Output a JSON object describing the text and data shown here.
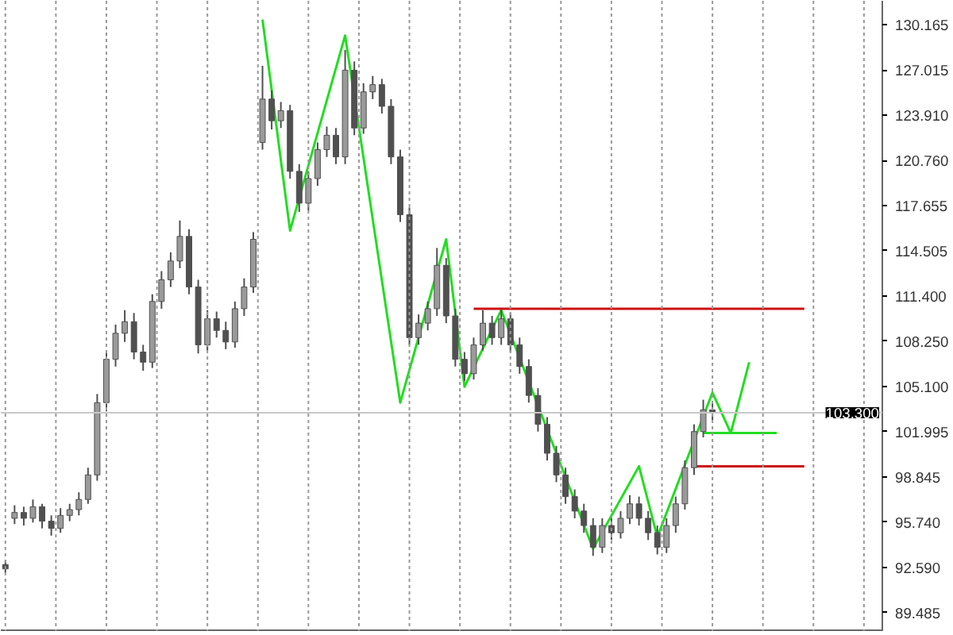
{
  "chart_data": {
    "type": "candlestick",
    "categories": [
      null,
      null,
      null,
      null,
      null,
      null,
      null,
      null,
      null,
      null,
      null,
      null,
      null,
      null,
      null,
      null,
      null,
      null,
      null,
      null,
      null,
      null,
      null,
      null,
      null,
      null,
      null,
      null,
      null,
      null,
      null,
      null,
      null,
      null,
      null,
      null,
      null,
      null,
      null,
      null,
      null,
      null,
      null,
      null,
      null,
      null,
      null,
      null,
      null,
      null,
      null,
      null,
      null,
      null,
      null,
      null,
      null,
      null,
      null,
      null,
      null,
      null,
      null,
      null,
      null,
      null,
      null,
      null,
      null,
      null,
      null,
      null,
      null,
      null,
      null,
      null,
      null,
      null,
      null,
      null,
      null,
      null,
      null,
      null,
      null,
      null,
      null,
      null,
      null,
      null,
      null,
      null,
      null,
      null,
      null,
      null
    ],
    "ohlc": [
      [
        92.8,
        93.1,
        92.2,
        92.5
      ],
      [
        96.0,
        96.9,
        95.6,
        96.4
      ],
      [
        96.4,
        96.8,
        95.5,
        96.0
      ],
      [
        96.0,
        97.3,
        95.7,
        96.8
      ],
      [
        96.8,
        97.0,
        95.3,
        95.8
      ],
      [
        95.8,
        96.2,
        94.8,
        95.3
      ],
      [
        95.3,
        96.7,
        95.0,
        96.2
      ],
      [
        96.2,
        97.0,
        95.8,
        96.6
      ],
      [
        96.6,
        97.8,
        96.2,
        97.3
      ],
      [
        97.3,
        99.5,
        97.0,
        99.0
      ],
      [
        99.0,
        104.6,
        98.6,
        104.0
      ],
      [
        104.0,
        107.6,
        103.4,
        107.0
      ],
      [
        107.0,
        109.4,
        106.5,
        108.8
      ],
      [
        108.8,
        110.4,
        108.2,
        109.6
      ],
      [
        109.6,
        110.2,
        107.0,
        107.5
      ],
      [
        107.5,
        108.0,
        106.2,
        106.8
      ],
      [
        106.8,
        111.5,
        106.4,
        111.0
      ],
      [
        111.0,
        113.1,
        110.5,
        112.5
      ],
      [
        112.5,
        114.4,
        112.0,
        113.8
      ],
      [
        113.8,
        116.6,
        113.3,
        115.5
      ],
      [
        115.5,
        116.0,
        111.5,
        112.0
      ],
      [
        112.0,
        112.5,
        107.4,
        108.0
      ],
      [
        108.0,
        110.4,
        107.6,
        109.8
      ],
      [
        109.8,
        110.3,
        108.5,
        109.0
      ],
      [
        109.0,
        109.6,
        107.7,
        108.2
      ],
      [
        108.2,
        111.0,
        107.8,
        110.5
      ],
      [
        110.5,
        112.6,
        110.0,
        112.0
      ],
      [
        112.0,
        115.8,
        111.6,
        115.3
      ],
      [
        122.0,
        127.3,
        121.5,
        125.0
      ],
      [
        125.0,
        125.6,
        122.9,
        123.5
      ],
      [
        123.5,
        124.8,
        123.0,
        124.2
      ],
      [
        124.2,
        124.6,
        119.5,
        120.0
      ],
      [
        120.0,
        120.5,
        117.2,
        117.8
      ],
      [
        117.8,
        120.0,
        117.3,
        119.5
      ],
      [
        119.5,
        122.0,
        119.0,
        121.5
      ],
      [
        121.5,
        123.1,
        121.0,
        122.5
      ],
      [
        122.5,
        123.0,
        120.5,
        121.0
      ],
      [
        121.0,
        128.4,
        120.5,
        127.0
      ],
      [
        127.0,
        127.6,
        122.5,
        123.0
      ],
      [
        123.0,
        126.1,
        122.6,
        125.5
      ],
      [
        125.5,
        126.6,
        125.0,
        126.0
      ],
      [
        126.0,
        126.4,
        124.0,
        124.5
      ],
      [
        124.5,
        125.0,
        120.5,
        121.0
      ],
      [
        121.0,
        121.5,
        116.5,
        117.0
      ],
      [
        117.0,
        117.5,
        108.0,
        108.5
      ],
      [
        108.5,
        110.1,
        108.0,
        109.5
      ],
      [
        109.5,
        111.0,
        109.0,
        110.5
      ],
      [
        110.5,
        114.7,
        110.0,
        113.5
      ],
      [
        113.5,
        114.0,
        109.5,
        110.0
      ],
      [
        110.0,
        110.5,
        106.5,
        107.0
      ],
      [
        107.0,
        107.5,
        105.5,
        106.0
      ],
      [
        106.0,
        108.5,
        105.6,
        108.0
      ],
      [
        108.0,
        110.4,
        107.6,
        109.5
      ],
      [
        109.5,
        110.0,
        108.0,
        108.5
      ],
      [
        108.5,
        110.4,
        108.0,
        109.8
      ],
      [
        109.8,
        110.2,
        107.5,
        108.0
      ],
      [
        108.0,
        108.5,
        106.0,
        106.5
      ],
      [
        106.5,
        107.0,
        104.0,
        104.5
      ],
      [
        104.5,
        105.0,
        102.0,
        102.5
      ],
      [
        102.5,
        103.0,
        100.0,
        100.5
      ],
      [
        100.5,
        101.0,
        98.5,
        99.0
      ],
      [
        99.0,
        99.5,
        97.0,
        97.5
      ],
      [
        97.5,
        98.0,
        96.0,
        96.5
      ],
      [
        96.5,
        97.0,
        95.0,
        95.5
      ],
      [
        95.5,
        96.0,
        93.4,
        94.0
      ],
      [
        94.0,
        96.0,
        93.6,
        95.5
      ],
      [
        95.5,
        96.0,
        94.5,
        95.0
      ],
      [
        95.0,
        96.5,
        94.6,
        96.0
      ],
      [
        96.0,
        97.6,
        95.6,
        97.0
      ],
      [
        97.0,
        97.5,
        95.5,
        96.0
      ],
      [
        96.0,
        96.5,
        94.5,
        95.0
      ],
      [
        95.0,
        95.5,
        93.5,
        94.0
      ],
      [
        94.0,
        96.0,
        93.6,
        95.5
      ],
      [
        95.5,
        97.5,
        95.0,
        97.0
      ],
      [
        97.0,
        100.0,
        96.6,
        99.5
      ],
      [
        99.5,
        102.5,
        99.0,
        102.0
      ],
      [
        102.0,
        104.2,
        101.6,
        103.5
      ],
      [
        103.5,
        104.0,
        102.8,
        103.3
      ],
      null,
      null,
      null,
      null,
      null,
      null,
      null,
      null,
      null,
      null,
      null,
      null,
      null,
      null,
      null,
      null,
      null,
      null
    ],
    "color": "#505050",
    "series": [
      {
        "type": "line",
        "color": "#22dd22",
        "values": [
          null,
          null,
          null,
          null,
          null,
          null,
          null,
          null,
          null,
          null,
          null,
          null,
          null,
          null,
          null,
          null,
          null,
          null,
          null,
          null,
          null,
          null,
          null,
          null,
          null,
          null,
          null,
          null,
          130.5,
          null,
          null,
          115.9,
          null,
          null,
          null,
          null,
          null,
          129.4,
          null,
          null,
          null,
          null,
          null,
          104.0,
          null,
          null,
          null,
          null,
          115.3,
          null,
          105.1,
          null,
          null,
          null,
          110.4,
          null,
          null,
          null,
          null,
          null,
          null,
          null,
          null,
          null,
          93.9,
          null,
          null,
          null,
          null,
          99.6,
          null,
          94.7,
          null,
          null,
          null,
          null,
          null,
          104.7,
          null,
          101.9,
          null,
          106.8,
          null,
          null,
          null,
          null,
          null,
          null,
          null,
          null,
          null,
          null,
          null,
          null,
          null,
          null
        ]
      },
      {
        "type": "line",
        "color": "#22dd22",
        "values": [
          null,
          null,
          null,
          null,
          null,
          null,
          null,
          null,
          null,
          null,
          null,
          null,
          null,
          null,
          null,
          null,
          null,
          null,
          null,
          null,
          null,
          null,
          null,
          null,
          null,
          null,
          null,
          null,
          null,
          null,
          null,
          null,
          null,
          null,
          null,
          null,
          null,
          null,
          null,
          null,
          null,
          null,
          null,
          null,
          null,
          null,
          null,
          null,
          null,
          null,
          null,
          null,
          null,
          null,
          null,
          null,
          null,
          null,
          null,
          null,
          null,
          null,
          null,
          null,
          null,
          null,
          null,
          null,
          null,
          null,
          null,
          null,
          null,
          null,
          null,
          null,
          101.9,
          null,
          null,
          null,
          null,
          null,
          null,
          null,
          101.9,
          null,
          null,
          null,
          null,
          null,
          null,
          null,
          null,
          null,
          null,
          null
        ]
      },
      {
        "type": "line",
        "color": "#cc1111",
        "values": [
          null,
          null,
          null,
          null,
          null,
          null,
          null,
          null,
          null,
          null,
          null,
          null,
          null,
          null,
          null,
          null,
          null,
          null,
          null,
          null,
          null,
          null,
          null,
          null,
          null,
          null,
          null,
          null,
          null,
          null,
          null,
          null,
          null,
          null,
          null,
          null,
          null,
          null,
          null,
          null,
          null,
          null,
          null,
          null,
          null,
          null,
          null,
          null,
          null,
          null,
          null,
          110.5,
          null,
          null,
          null,
          null,
          null,
          null,
          null,
          null,
          null,
          null,
          null,
          null,
          null,
          null,
          null,
          null,
          null,
          null,
          null,
          null,
          null,
          null,
          null,
          null,
          null,
          null,
          null,
          null,
          null,
          null,
          null,
          null,
          null,
          null,
          null,
          110.5,
          null,
          null,
          null,
          null,
          null,
          null,
          null,
          null
        ]
      },
      {
        "type": "line",
        "color": "#cc1111",
        "values": [
          null,
          null,
          null,
          null,
          null,
          null,
          null,
          null,
          null,
          null,
          null,
          null,
          null,
          null,
          null,
          null,
          null,
          null,
          null,
          null,
          null,
          null,
          null,
          null,
          null,
          null,
          null,
          null,
          null,
          null,
          null,
          null,
          null,
          null,
          null,
          null,
          null,
          null,
          null,
          null,
          null,
          null,
          null,
          null,
          null,
          null,
          null,
          null,
          null,
          null,
          null,
          null,
          null,
          null,
          null,
          null,
          null,
          null,
          null,
          null,
          null,
          null,
          null,
          null,
          null,
          null,
          null,
          null,
          null,
          null,
          null,
          null,
          null,
          null,
          null,
          99.6,
          null,
          null,
          null,
          null,
          null,
          null,
          null,
          null,
          null,
          null,
          null,
          99.6,
          null,
          null,
          null,
          null,
          null,
          null,
          null,
          null
        ]
      }
    ],
    "ref_lines": [
      {
        "axis": "y",
        "value": 103.3,
        "label": "103.300",
        "color": "#c8c8c8"
      }
    ],
    "ylim": [
      88.2,
      131.8
    ],
    "yticks": [
      {
        "value": 130.165,
        "label": "130.165"
      },
      {
        "value": 127.015,
        "label": "127.015"
      },
      {
        "value": 123.91,
        "label": "123.910"
      },
      {
        "value": 120.76,
        "label": "120.760"
      },
      {
        "value": 117.655,
        "label": "117.655"
      },
      {
        "value": 114.505,
        "label": "114.505"
      },
      {
        "value": 111.4,
        "label": "111.400"
      },
      {
        "value": 108.25,
        "label": "108.250"
      },
      {
        "value": 105.1,
        "label": "105.100"
      },
      {
        "value": 101.995,
        "label": "101.995"
      },
      {
        "value": 98.845,
        "label": "98.845"
      },
      {
        "value": 95.74,
        "label": "95.740"
      },
      {
        "value": 92.59,
        "label": "92.590"
      },
      {
        "value": 89.485,
        "label": "89.485"
      }
    ],
    "grid": "x"
  }
}
